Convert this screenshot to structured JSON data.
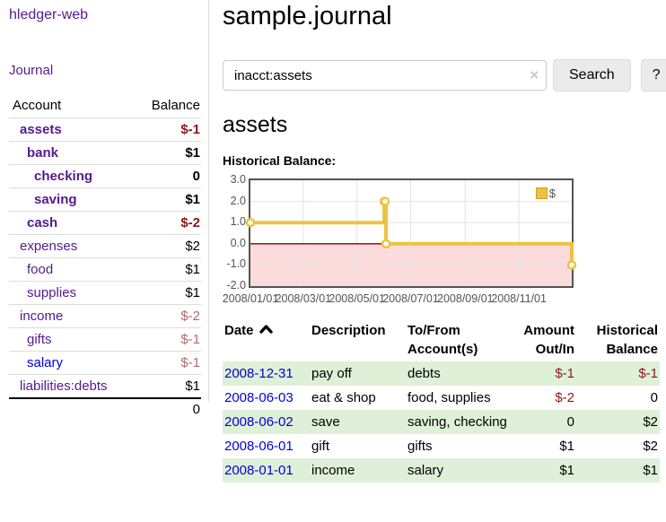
{
  "app": {
    "brand": "hledger-web"
  },
  "sidebar": {
    "journal_link": "Journal",
    "accounts": {
      "header": {
        "account": "Account",
        "balance": "Balance"
      },
      "rows": [
        {
          "name": "assets",
          "balance": "$-1",
          "depth": 0,
          "bold": true,
          "neg": "strong",
          "link": "visited"
        },
        {
          "name": "bank",
          "balance": "$1",
          "depth": 1,
          "bold": true,
          "neg": "none",
          "link": "visited"
        },
        {
          "name": "checking",
          "balance": "0",
          "depth": 2,
          "bold": true,
          "neg": "none",
          "link": "visited"
        },
        {
          "name": "saving",
          "balance": "$1",
          "depth": 2,
          "bold": true,
          "neg": "none",
          "link": "visited"
        },
        {
          "name": "cash",
          "balance": "$-2",
          "depth": 1,
          "bold": true,
          "neg": "strong",
          "link": "visited"
        },
        {
          "name": "expenses",
          "balance": "$2",
          "depth": 0,
          "bold": false,
          "neg": "none",
          "link": "visited"
        },
        {
          "name": "food",
          "balance": "$1",
          "depth": 1,
          "bold": false,
          "neg": "none",
          "link": "visited"
        },
        {
          "name": "supplies",
          "balance": "$1",
          "depth": 1,
          "bold": false,
          "neg": "none",
          "link": "visited"
        },
        {
          "name": "income",
          "balance": "$-2",
          "depth": 0,
          "bold": false,
          "neg": "soft",
          "link": "visited"
        },
        {
          "name": "gifts",
          "balance": "$-1",
          "depth": 1,
          "bold": false,
          "neg": "soft",
          "link": "visited"
        },
        {
          "name": "salary",
          "balance": "$-1",
          "depth": 1,
          "bold": false,
          "neg": "soft",
          "link": "unvisited"
        },
        {
          "name": "liabilities:debts",
          "balance": "$1",
          "depth": 0,
          "bold": false,
          "neg": "none",
          "link": "visited"
        }
      ],
      "total": "0"
    }
  },
  "main": {
    "title": "sample.journal",
    "search": {
      "value": "inacct:assets",
      "clear_icon": "×",
      "button_label": "Search",
      "help_label": "?"
    },
    "account_heading": "assets",
    "chart_label": "Historical Balance:"
  },
  "chart_data": {
    "type": "line",
    "title": "Historical Balance of assets",
    "line_style": "step-after",
    "series": [
      {
        "name": "$",
        "color": "#edc240",
        "points": [
          {
            "date": "2008-01-01",
            "day": 0,
            "value": 1
          },
          {
            "date": "2008-06-01",
            "day": 152,
            "value": 2
          },
          {
            "date": "2008-06-02",
            "day": 153,
            "value": 2
          },
          {
            "date": "2008-06-03",
            "day": 154,
            "value": 0
          },
          {
            "date": "2008-12-31",
            "day": 365,
            "value": -1
          }
        ]
      }
    ],
    "x_range_days": 365,
    "x_ticks": [
      {
        "label": "2008/01/01",
        "day": 0
      },
      {
        "label": "2008/03/01",
        "day": 60
      },
      {
        "label": "2008/05/01",
        "day": 121
      },
      {
        "label": "2008/07/01",
        "day": 182
      },
      {
        "label": "2008/09/01",
        "day": 244
      },
      {
        "label": "2008/11/01",
        "day": 305
      }
    ],
    "y_ticks": [
      "3.0",
      "2.0",
      "1.0",
      "0.0",
      "-1.0",
      "-2.0"
    ],
    "ylim": [
      -2,
      3
    ],
    "grid": true,
    "negative_region_color": "#fbdbdb",
    "zero_line_color": "#8b0000",
    "grid_color": "#e3e3e3",
    "marker_fill": "#ffffff",
    "legend": {
      "label": "$",
      "position": "top-right"
    }
  },
  "register": {
    "headers": {
      "date": "Date",
      "description": "Description",
      "accounts": "To/From Account(s)",
      "amount": "Amount Out/In",
      "balance": "Historical Balance"
    },
    "sort_icon": "chevron-up",
    "rows": [
      {
        "date": "2008-12-31",
        "description": "pay off",
        "accounts": "debts",
        "amount": "$-1",
        "balance": "$-1",
        "amount_neg": true,
        "balance_neg": true
      },
      {
        "date": "2008-06-03",
        "description": "eat & shop",
        "accounts": "food, supplies",
        "amount": "$-2",
        "balance": "0",
        "amount_neg": true,
        "balance_neg": false
      },
      {
        "date": "2008-06-02",
        "description": "save",
        "accounts": "saving, checking",
        "amount": "0",
        "balance": "$2",
        "amount_neg": false,
        "balance_neg": false
      },
      {
        "date": "2008-06-01",
        "description": "gift",
        "accounts": "gifts",
        "amount": "$1",
        "balance": "$2",
        "amount_neg": false,
        "balance_neg": false
      },
      {
        "date": "2008-01-01",
        "description": "income",
        "accounts": "salary",
        "amount": "$1",
        "balance": "$1",
        "amount_neg": false,
        "balance_neg": false
      }
    ]
  }
}
